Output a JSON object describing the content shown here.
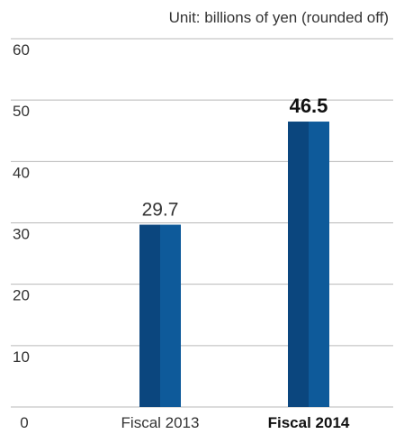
{
  "chart_data": {
    "type": "bar",
    "unit_note": "Unit: billions of yen (rounded off)",
    "categories": [
      "Fiscal 2013",
      "Fiscal 2014"
    ],
    "values": [
      29.7,
      46.5
    ],
    "value_labels": [
      "29.7",
      "46.5"
    ],
    "emphasis": [
      false,
      true
    ],
    "yticks": [
      "0",
      "10",
      "20",
      "30",
      "40",
      "50",
      "60"
    ],
    "ylim": [
      0,
      60
    ],
    "grid": true,
    "colors": {
      "bar_dark": "#0b467e",
      "bar_light": "#0e5a9a",
      "grid": "#b9b9b9",
      "text": "#333333",
      "label_strong": "#111111"
    }
  }
}
